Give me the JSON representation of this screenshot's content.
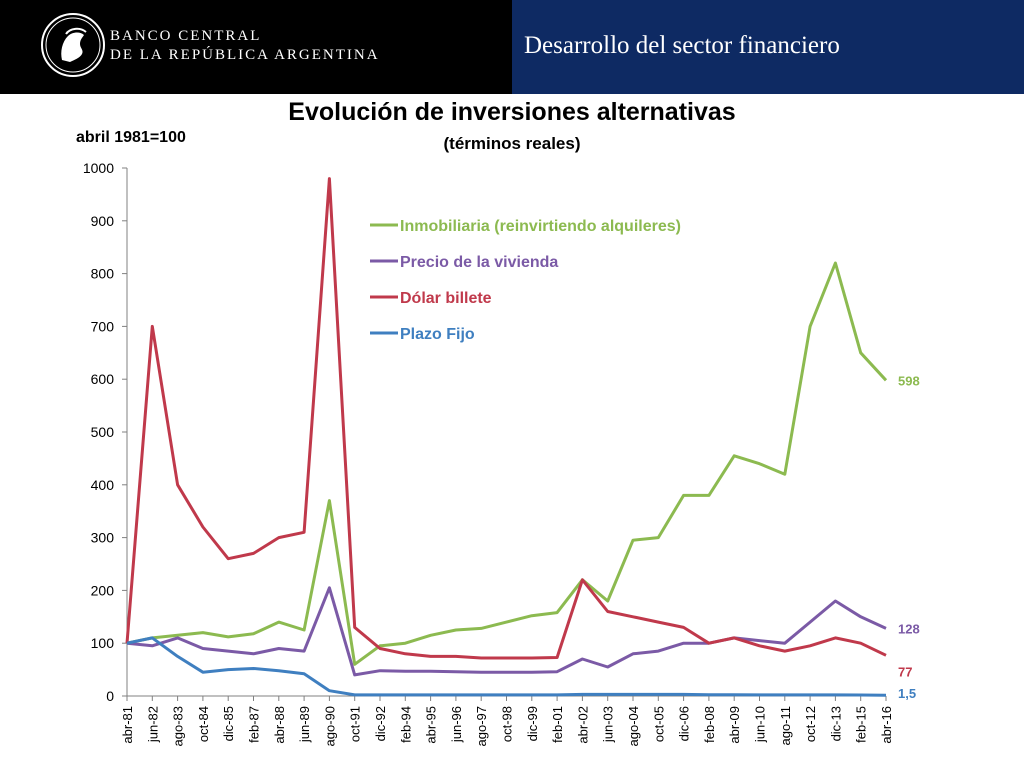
{
  "header": {
    "bank_line1": "BANCO CENTRAL",
    "bank_line2": "DE LA REPÚBLICA ARGENTINA",
    "section_title": "Desarrollo del sector financiero",
    "logo_icon": "bank-seal-icon"
  },
  "chart_data": {
    "type": "line",
    "title": "Evolución de inversiones alternativas",
    "subtitle": "(términos reales)",
    "xlabel": "",
    "ylabel": "abril 1981=100",
    "ylim": [
      0,
      1000
    ],
    "yticks": [
      0,
      100,
      200,
      300,
      400,
      500,
      600,
      700,
      800,
      900,
      1000
    ],
    "x": [
      "abr-81",
      "jun-82",
      "ago-83",
      "oct-84",
      "dic-85",
      "feb-87",
      "abr-88",
      "jun-89",
      "ago-90",
      "oct-91",
      "dic-92",
      "feb-94",
      "abr-95",
      "jun-96",
      "ago-97",
      "oct-98",
      "dic-99",
      "feb-01",
      "abr-02",
      "jun-03",
      "ago-04",
      "oct-05",
      "dic-06",
      "feb-08",
      "abr-09",
      "jun-10",
      "ago-11",
      "oct-12",
      "dic-13",
      "feb-15",
      "abr-16"
    ],
    "grid": false,
    "legend": "top-center inside plot",
    "series": [
      {
        "name": "Inmobiliaria (reinvirtiendo alquileres)",
        "color": "#8cba50",
        "end_label": "598",
        "values": [
          100,
          110,
          115,
          120,
          112,
          118,
          140,
          125,
          370,
          60,
          95,
          100,
          115,
          125,
          128,
          140,
          152,
          158,
          220,
          180,
          295,
          300,
          380,
          380,
          455,
          440,
          420,
          700,
          820,
          650,
          598
        ]
      },
      {
        "name": "Precio de la vivienda",
        "color": "#7b5aa6",
        "end_label": "128",
        "values": [
          100,
          95,
          110,
          90,
          85,
          80,
          90,
          85,
          205,
          40,
          48,
          47,
          47,
          46,
          45,
          45,
          45,
          46,
          70,
          55,
          80,
          85,
          100,
          100,
          110,
          105,
          100,
          140,
          180,
          150,
          128
        ]
      },
      {
        "name": "Dólar billete",
        "color": "#c0394b",
        "end_label": "77",
        "values": [
          100,
          700,
          400,
          320,
          260,
          270,
          300,
          310,
          980,
          130,
          90,
          80,
          75,
          75,
          72,
          72,
          72,
          73,
          220,
          160,
          150,
          140,
          130,
          100,
          110,
          95,
          85,
          95,
          110,
          100,
          77
        ]
      },
      {
        "name": "Plazo Fijo",
        "color": "#3f7fc0",
        "end_label": "1,5",
        "values": [
          100,
          110,
          75,
          45,
          50,
          52,
          48,
          42,
          10,
          2,
          2,
          2,
          2,
          2,
          2,
          2,
          2,
          2,
          3,
          3,
          3,
          3,
          3,
          2.5,
          2.5,
          2,
          2,
          2,
          2,
          1.8,
          1.5
        ]
      }
    ]
  }
}
